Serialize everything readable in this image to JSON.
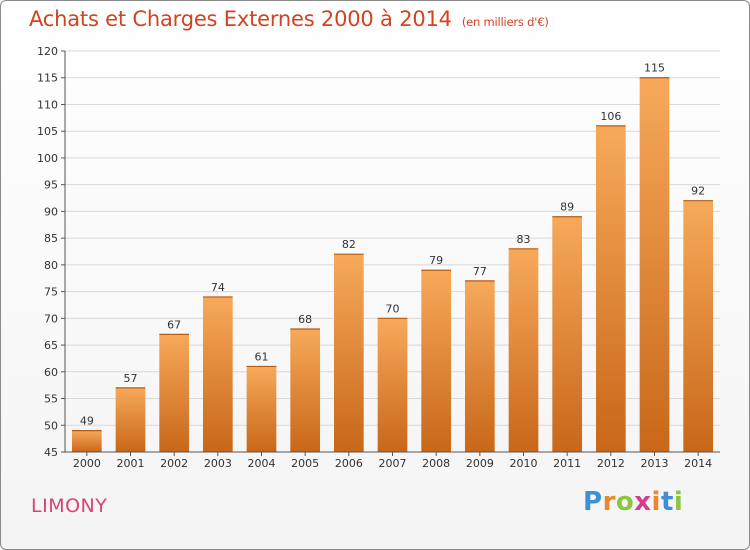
{
  "header": {
    "title": "Achats et Charges Externes 2000 à 2014",
    "subtitle": "(en milliers d'€)"
  },
  "footer": {
    "town": "LIMONY",
    "logo": [
      "P",
      "r",
      "o",
      "x",
      "i",
      "t",
      "i"
    ]
  },
  "colors": {
    "title": "#d2441e",
    "town": "#d9446e",
    "bar_top": "#f7a95a",
    "bar_bottom": "#c8671a",
    "grid": "#d8d8d8"
  },
  "chart_data": {
    "type": "bar",
    "categories": [
      "2000",
      "2001",
      "2002",
      "2003",
      "2004",
      "2005",
      "2006",
      "2007",
      "2008",
      "2009",
      "2010",
      "2011",
      "2012",
      "2013",
      "2014"
    ],
    "values": [
      49,
      57,
      67,
      74,
      61,
      68,
      82,
      70,
      79,
      77,
      83,
      89,
      106,
      115,
      92
    ],
    "ylim": [
      45,
      120
    ],
    "ytick_step": 5,
    "grid": true
  }
}
